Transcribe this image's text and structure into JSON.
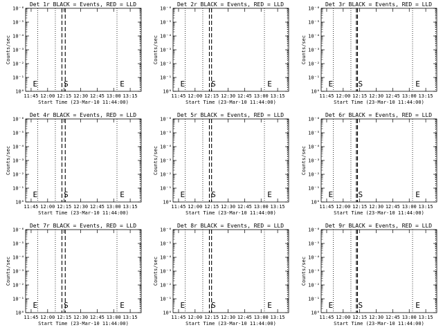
{
  "chart_data": [
    {
      "type": "line",
      "title": "Det 1r BLACK = Events, RED = LLD",
      "xlabel": "Start Time (23-Mar-10 11:44:00)",
      "ylabel": "Counts/sec",
      "x_tick_labels": [
        "11:45",
        "12:00",
        "12:15",
        "12:30",
        "12:45",
        "13:00",
        "13:15"
      ],
      "y_tick_labels": [
        "10⁰",
        "10⁻¹",
        "10⁻²",
        "10⁻³",
        "10⁻⁴",
        "10⁻⁵",
        "10⁻⁶"
      ],
      "y_log_scale": true,
      "grid": false,
      "dotted_vertical_lines": [
        "11:51",
        "12:07",
        "13:03",
        "13:24"
      ],
      "dashed_vertical_lines": [
        "12:13",
        "12:16"
      ],
      "annotations": [
        {
          "text": "E",
          "x": "11:46"
        },
        {
          "text": "S",
          "x": "12:14"
        },
        {
          "text": "E",
          "x": "13:05"
        }
      ],
      "colors": {
        "events": "#000000"
      }
    },
    {
      "type": "line",
      "title": "Det 2r BLACK = Events, RED = LLD",
      "xlabel": "Start Time (23-Mar-10 11:44:00)",
      "ylabel": "Counts/sec",
      "x_tick_labels": [
        "11:45",
        "12:00",
        "12:15",
        "12:30",
        "12:45",
        "13:00",
        "13:15"
      ],
      "y_tick_labels": [
        "10⁰",
        "10⁻¹",
        "10⁻²",
        "10⁻³",
        "10⁻⁴",
        "10⁻⁵",
        "10⁻⁶"
      ],
      "y_log_scale": true,
      "grid": false,
      "dotted_vertical_lines": [
        "11:51",
        "12:07",
        "13:03",
        "13:24"
      ],
      "dashed_vertical_lines": [
        "12:13",
        "12:15"
      ],
      "annotations": [
        {
          "text": "E",
          "x": "11:46"
        },
        {
          "text": "S",
          "x": "12:14"
        },
        {
          "text": "E",
          "x": "13:05"
        }
      ],
      "colors": {
        "events": "#000000"
      }
    },
    {
      "type": "line",
      "title": "Det 3r BLACK = Events, RED = LLD",
      "xlabel": "Start Time (23-Mar-10 11:44:00)",
      "ylabel": "Counts/sec",
      "x_tick_labels": [
        "11:45",
        "12:00",
        "12:15",
        "12:30",
        "12:45",
        "13:00",
        "13:15"
      ],
      "y_tick_labels": [
        "10⁰",
        "10⁻¹",
        "10⁻²",
        "10⁻³",
        "10⁻⁴",
        "10⁻⁵",
        "10⁻⁶"
      ],
      "y_log_scale": true,
      "grid": false,
      "dotted_vertical_lines": [
        "11:51",
        "12:07",
        "13:03",
        "13:24"
      ],
      "dashed_vertical_lines": [
        "12:12",
        "12:13"
      ],
      "annotations": [
        {
          "text": "E",
          "x": "11:46"
        },
        {
          "text": "S",
          "x": "12:13"
        },
        {
          "text": "E",
          "x": "13:05"
        }
      ],
      "colors": {
        "events": "#000000"
      }
    },
    {
      "type": "line",
      "title": "Det 4r BLACK = Events, RED = LLD",
      "xlabel": "Start Time (23-Mar-10 11:44:00)",
      "ylabel": "Counts/sec",
      "x_tick_labels": [
        "11:45",
        "12:00",
        "12:15",
        "12:30",
        "12:45",
        "13:00",
        "13:15"
      ],
      "y_tick_labels": [
        "10⁰",
        "10⁻¹",
        "10⁻²",
        "10⁻³",
        "10⁻⁴",
        "10⁻⁵",
        "10⁻⁶"
      ],
      "y_log_scale": true,
      "grid": false,
      "dotted_vertical_lines": [
        "11:51",
        "12:07",
        "13:03",
        "13:24"
      ],
      "dashed_vertical_lines": [
        "12:13",
        "12:16"
      ],
      "annotations": [
        {
          "text": "E",
          "x": "11:46"
        },
        {
          "text": "S",
          "x": "12:14"
        },
        {
          "text": "E",
          "x": "13:05"
        }
      ],
      "colors": {
        "events": "#000000"
      }
    },
    {
      "type": "line",
      "title": "Det 5r BLACK = Events, RED = LLD",
      "xlabel": "Start Time (23-Mar-10 11:44:00)",
      "ylabel": "Counts/sec",
      "x_tick_labels": [
        "11:45",
        "12:00",
        "12:15",
        "12:30",
        "12:45",
        "13:00",
        "13:15"
      ],
      "y_tick_labels": [
        "10⁰",
        "10⁻¹",
        "10⁻²",
        "10⁻³",
        "10⁻⁴",
        "10⁻⁵",
        "10⁻⁶"
      ],
      "y_log_scale": true,
      "grid": false,
      "dotted_vertical_lines": [
        "11:51",
        "12:07",
        "13:03",
        "13:24"
      ],
      "dashed_vertical_lines": [
        "12:13",
        "12:15"
      ],
      "annotations": [
        {
          "text": "E",
          "x": "11:46"
        },
        {
          "text": "S",
          "x": "12:14"
        },
        {
          "text": "E",
          "x": "13:05"
        }
      ],
      "colors": {
        "events": "#000000"
      }
    },
    {
      "type": "line",
      "title": "Det 6r BLACK = Events, RED = LLD",
      "xlabel": "Start Time (23-Mar-10 11:44:00)",
      "ylabel": "Counts/sec",
      "x_tick_labels": [
        "11:45",
        "12:00",
        "12:15",
        "12:30",
        "12:45",
        "13:00",
        "13:15"
      ],
      "y_tick_labels": [
        "10⁰",
        "10⁻¹",
        "10⁻²",
        "10⁻³",
        "10⁻⁴",
        "10⁻⁵",
        "10⁻⁶"
      ],
      "y_log_scale": true,
      "grid": false,
      "dotted_vertical_lines": [
        "11:51",
        "12:07",
        "13:03",
        "13:24"
      ],
      "dashed_vertical_lines": [
        "12:12",
        "12:13"
      ],
      "annotations": [
        {
          "text": "E",
          "x": "11:46"
        },
        {
          "text": "S",
          "x": "12:13"
        },
        {
          "text": "E",
          "x": "13:05"
        }
      ],
      "colors": {
        "events": "#000000"
      }
    },
    {
      "type": "line",
      "title": "Det 7r BLACK = Events, RED = LLD",
      "xlabel": "Start Time (23-Mar-10 11:44:00)",
      "ylabel": "Counts/sec",
      "x_tick_labels": [
        "11:45",
        "12:00",
        "12:15",
        "12:30",
        "12:45",
        "13:00",
        "13:15"
      ],
      "y_tick_labels": [
        "10⁰",
        "10⁻¹",
        "10⁻²",
        "10⁻³",
        "10⁻⁴",
        "10⁻⁵",
        "10⁻⁶"
      ],
      "y_log_scale": true,
      "grid": false,
      "dotted_vertical_lines": [
        "11:51",
        "12:07",
        "13:03",
        "13:24"
      ],
      "dashed_vertical_lines": [
        "12:13",
        "12:16"
      ],
      "annotations": [
        {
          "text": "E",
          "x": "11:46"
        },
        {
          "text": "S",
          "x": "12:14"
        },
        {
          "text": "E",
          "x": "13:05"
        }
      ],
      "colors": {
        "events": "#000000"
      }
    },
    {
      "type": "line",
      "title": "Det 8r BLACK = Events, RED = LLD",
      "xlabel": "Start Time (23-Mar-10 11:44:00)",
      "ylabel": "Counts/sec",
      "x_tick_labels": [
        "11:45",
        "12:00",
        "12:15",
        "12:30",
        "12:45",
        "13:00",
        "13:15"
      ],
      "y_tick_labels": [
        "10⁰",
        "10⁻¹",
        "10⁻²",
        "10⁻³",
        "10⁻⁴",
        "10⁻⁵",
        "10⁻⁶"
      ],
      "y_log_scale": true,
      "grid": false,
      "dotted_vertical_lines": [
        "11:51",
        "12:07",
        "13:03",
        "13:24"
      ],
      "dashed_vertical_lines": [
        "12:13",
        "12:15"
      ],
      "annotations": [
        {
          "text": "E",
          "x": "11:46"
        },
        {
          "text": "S",
          "x": "12:14"
        },
        {
          "text": "E",
          "x": "13:05"
        }
      ],
      "colors": {
        "events": "#000000"
      }
    },
    {
      "type": "line",
      "title": "Det 9r BLACK = Events, RED = LLD",
      "xlabel": "Start Time (23-Mar-10 11:44:00)",
      "ylabel": "Counts/sec",
      "x_tick_labels": [
        "11:45",
        "12:00",
        "12:15",
        "12:30",
        "12:45",
        "13:00",
        "13:15"
      ],
      "y_tick_labels": [
        "10⁰",
        "10⁻¹",
        "10⁻²",
        "10⁻³",
        "10⁻⁴",
        "10⁻⁵",
        "10⁻⁶"
      ],
      "y_log_scale": true,
      "grid": false,
      "dotted_vertical_lines": [
        "11:51",
        "12:07",
        "13:03",
        "13:24"
      ],
      "dashed_vertical_lines": [
        "12:12",
        "12:13"
      ],
      "annotations": [
        {
          "text": "E",
          "x": "11:46"
        },
        {
          "text": "S",
          "x": "12:13"
        },
        {
          "text": "E",
          "x": "13:05"
        }
      ],
      "colors": {
        "events": "#000000"
      }
    }
  ]
}
